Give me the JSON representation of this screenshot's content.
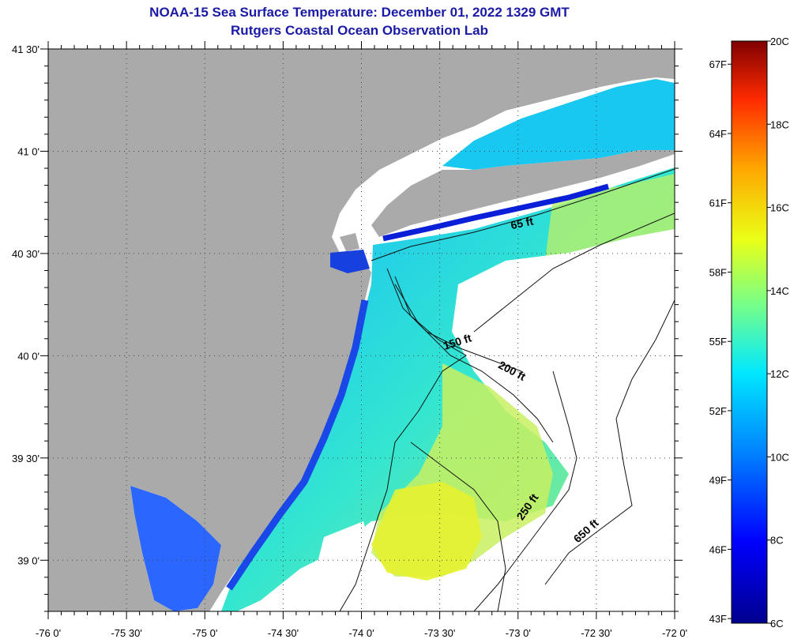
{
  "title": "NOAA-15 Sea Surface Temperature:  December 01, 2022 1329 GMT",
  "subtitle": "Rutgers Coastal Ocean Observation Lab",
  "colors": {
    "land": "#aaaaaa",
    "nodata": "#ffffff",
    "title": "#1a1aa6"
  },
  "map": {
    "lon_range": [
      -76,
      -72
    ],
    "lat_range": [
      38.75,
      41.5
    ],
    "lon_ticks": [
      {
        "value": -76.0,
        "label": "-76 0'"
      },
      {
        "value": -75.5,
        "label": "-75 30'"
      },
      {
        "value": -75.0,
        "label": "-75 0'"
      },
      {
        "value": -74.5,
        "label": "-74 30'"
      },
      {
        "value": -74.0,
        "label": "-74 0'"
      },
      {
        "value": -73.5,
        "label": "-73 30'"
      },
      {
        "value": -73.0,
        "label": "-73 0'"
      },
      {
        "value": -72.5,
        "label": "-72 30'"
      },
      {
        "value": -72.0,
        "label": "-72 0'"
      }
    ],
    "lat_ticks": [
      {
        "value": 41.5,
        "label": "41 30'"
      },
      {
        "value": 41.0,
        "label": "41 0'"
      },
      {
        "value": 40.5,
        "label": "40 30'"
      },
      {
        "value": 40.0,
        "label": "40 0'"
      },
      {
        "value": 39.5,
        "label": "39 30'"
      },
      {
        "value": 39.0,
        "label": "39 0'"
      }
    ],
    "isobath_labels": [
      {
        "text": "65 ft",
        "lon": -72.97,
        "lat": 40.63,
        "rotate": -12
      },
      {
        "text": "150 ft",
        "lon": -73.38,
        "lat": 40.05,
        "rotate": -18
      },
      {
        "text": "200 ft",
        "lon": -73.05,
        "lat": 39.91,
        "rotate": 28
      },
      {
        "text": "250 ft",
        "lon": -72.92,
        "lat": 39.25,
        "rotate": -55
      },
      {
        "text": "650 ft",
        "lon": -72.55,
        "lat": 39.13,
        "rotate": -42
      }
    ]
  },
  "colorbar": {
    "min_c": 6,
    "max_c": 20,
    "c_labels": [
      "20C",
      "18C",
      "16C",
      "14C",
      "12C",
      "10C",
      "8C",
      "6C"
    ],
    "f_labels": [
      {
        "label": "67F",
        "f": 67
      },
      {
        "label": "64F",
        "f": 64
      },
      {
        "label": "61F",
        "f": 61
      },
      {
        "label": "58F",
        "f": 58
      },
      {
        "label": "55F",
        "f": 55
      },
      {
        "label": "52F",
        "f": 52
      },
      {
        "label": "49F",
        "f": 49
      },
      {
        "label": "46F",
        "f": 46
      },
      {
        "label": "43F",
        "f": 43
      }
    ]
  }
}
